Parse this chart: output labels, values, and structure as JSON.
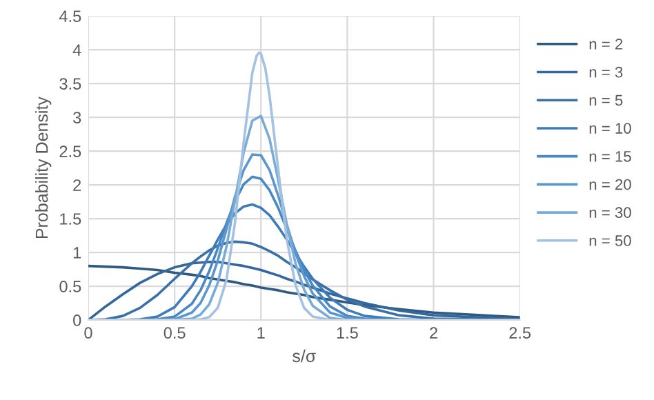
{
  "chart_data": {
    "type": "line",
    "xlabel": "s/σ",
    "ylabel": "Probability Density",
    "x": [
      0,
      0.1,
      0.2,
      0.3,
      0.4,
      0.5,
      0.6,
      0.65,
      0.7,
      0.75,
      0.8,
      0.85,
      0.9,
      0.95,
      1.0,
      1.05,
      1.1,
      1.15,
      1.2,
      1.25,
      1.3,
      1.4,
      1.5,
      1.6,
      1.8,
      2.0,
      2.5
    ],
    "xlim": [
      0,
      2.5
    ],
    "xticks": [
      0,
      0.5,
      1,
      1.5,
      2,
      2.5
    ],
    "ylim": [
      0,
      4.5
    ],
    "yticks": [
      0,
      0.5,
      1,
      1.5,
      2,
      2.5,
      3,
      3.5,
      4,
      4.5
    ],
    "grid": true,
    "legend": "right",
    "marker": "none",
    "line_style": "solid",
    "series": [
      {
        "name": "n = 2",
        "color": "#2f5a80",
        "values": [
          0.8,
          0.79,
          0.78,
          0.76,
          0.74,
          0.7,
          0.67,
          0.65,
          0.62,
          0.6,
          0.58,
          0.56,
          0.53,
          0.51,
          0.48,
          0.46,
          0.44,
          0.41,
          0.39,
          0.37,
          0.34,
          0.3,
          0.26,
          0.22,
          0.16,
          0.11,
          0.04
        ]
      },
      {
        "name": "n = 3",
        "color": "#35679a",
        "values": [
          0,
          0.2,
          0.38,
          0.55,
          0.68,
          0.78,
          0.84,
          0.85,
          0.86,
          0.86,
          0.84,
          0.82,
          0.8,
          0.77,
          0.74,
          0.7,
          0.66,
          0.61,
          0.57,
          0.52,
          0.48,
          0.39,
          0.32,
          0.25,
          0.14,
          0.07,
          0.01
        ]
      },
      {
        "name": "n = 5",
        "color": "#3a70a8",
        "values": [
          0,
          0.01,
          0.06,
          0.18,
          0.37,
          0.61,
          0.84,
          0.94,
          1.03,
          1.1,
          1.14,
          1.16,
          1.15,
          1.13,
          1.08,
          1.02,
          0.95,
          0.86,
          0.78,
          0.69,
          0.6,
          0.44,
          0.3,
          0.2,
          0.07,
          0.02,
          0
        ]
      },
      {
        "name": "n = 10",
        "color": "#3f7bb8",
        "values": [
          0,
          0,
          0,
          0.01,
          0.05,
          0.19,
          0.5,
          0.71,
          0.95,
          1.19,
          1.41,
          1.58,
          1.68,
          1.71,
          1.66,
          1.55,
          1.38,
          1.19,
          0.99,
          0.79,
          0.61,
          0.33,
          0.15,
          0.06,
          0.01,
          0,
          0
        ]
      },
      {
        "name": "n = 15",
        "color": "#4a88c4",
        "values": [
          0,
          0,
          0,
          0,
          0.01,
          0.05,
          0.24,
          0.44,
          0.72,
          1.06,
          1.43,
          1.76,
          2.01,
          2.12,
          2.09,
          1.92,
          1.66,
          1.34,
          1.03,
          0.74,
          0.51,
          0.2,
          0.06,
          0.02,
          0,
          0,
          0
        ]
      },
      {
        "name": "n = 20",
        "color": "#5b96cc",
        "values": [
          0,
          0,
          0,
          0,
          0,
          0.01,
          0.11,
          0.25,
          0.51,
          0.88,
          1.34,
          1.83,
          2.22,
          2.45,
          2.44,
          2.22,
          1.84,
          1.41,
          0.99,
          0.65,
          0.39,
          0.11,
          0.03,
          0,
          0,
          0,
          0
        ]
      },
      {
        "name": "n = 30",
        "color": "#7aaad8",
        "values": [
          0,
          0,
          0,
          0,
          0,
          0,
          0.02,
          0.08,
          0.23,
          0.55,
          1.08,
          1.78,
          2.48,
          2.95,
          3.02,
          2.68,
          2.07,
          1.41,
          0.84,
          0.45,
          0.21,
          0.03,
          0,
          0,
          0,
          0,
          0
        ]
      },
      {
        "name": "n = 50",
        "color": "#a3c2e3",
        "x": [
          0,
          0.1,
          0.2,
          0.3,
          0.4,
          0.5,
          0.6,
          0.65,
          0.7,
          0.75,
          0.8,
          0.85,
          0.9,
          0.95,
          0.975,
          0.99,
          1.0,
          1.025,
          1.05,
          1.1,
          1.15,
          1.2,
          1.25,
          1.3,
          1.4,
          1.5,
          1.6,
          1.8,
          2.0,
          2.5
        ],
        "values": [
          0,
          0,
          0,
          0,
          0,
          0,
          0,
          0.01,
          0.04,
          0.18,
          0.59,
          1.45,
          2.63,
          3.66,
          3.91,
          3.96,
          3.94,
          3.73,
          3.32,
          2.23,
          1.19,
          0.52,
          0.18,
          0.05,
          0,
          0,
          0,
          0,
          0,
          0
        ]
      }
    ]
  }
}
